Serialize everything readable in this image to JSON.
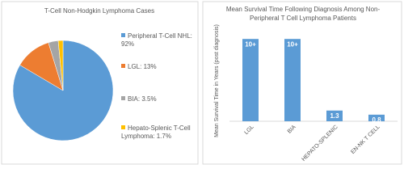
{
  "chart_data": [
    {
      "type": "pie",
      "title": "T-Cell Non-Hodgkin Lymphoma Cases",
      "categories": [
        "Peripheral T-Cell NHL: 92%",
        "LGL: 13%",
        "BIA: 3.5%",
        "Hepato-Splenic T-Cell Lymphoma: 1.7%"
      ],
      "values": [
        92,
        13,
        3.5,
        1.7
      ],
      "colors": [
        "#5b9bd5",
        "#ed7d31",
        "#a5a5a5",
        "#ffc000"
      ]
    },
    {
      "type": "bar",
      "title": "Mean Survival Time Following Diagnosis Among Non-Peripheral T Cell Lymphoma Patients",
      "y_label": "Mean Survival Time in Years (post diagnosis)",
      "categories": [
        "LGL",
        "BIA",
        "HEPATO-SPLENIC",
        "EN-NK T CELL"
      ],
      "values": [
        10,
        10,
        1.3,
        0.8
      ],
      "value_labels": [
        "10+",
        "10+",
        "1.3",
        "0.8"
      ],
      "color": "#5b9bd5",
      "ylim": [
        0,
        11
      ]
    }
  ]
}
